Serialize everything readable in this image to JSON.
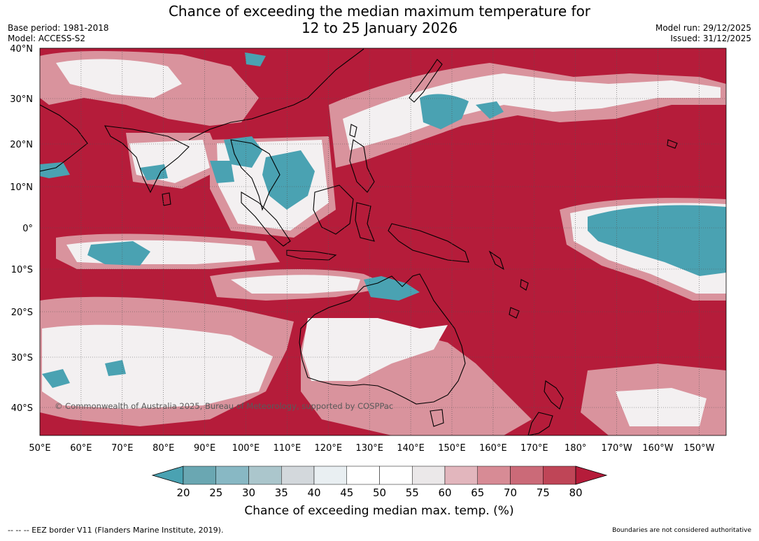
{
  "header": {
    "title_line1": "Chance of exceeding the median maximum temperature for",
    "title_line2": "12 to 25 January 2026",
    "base_period": "Base period: 1981-2018",
    "model": "Model: ACCESS-S2",
    "model_run": "Model run: 29/12/2025",
    "issued": "Issued: 31/12/2025"
  },
  "map": {
    "lon_labels": [
      "50°E",
      "60°E",
      "70°E",
      "80°E",
      "90°E",
      "100°E",
      "110°E",
      "120°E",
      "130°E",
      "140°E",
      "150°E",
      "160°E",
      "170°E",
      "180°",
      "170°W",
      "160°W",
      "150°W"
    ],
    "lat_labels": [
      "40°N",
      "30°N",
      "20°N",
      "10°N",
      "0°",
      "10°S",
      "20°S",
      "30°S",
      "40°S"
    ],
    "copyright": "© Commonwealth of Australia 2025, Bureau of Meteorology, supported by COSPPac",
    "colors": {
      "hot": "#b51c3a",
      "cool": "#4aa2b2",
      "ocean_base": "#b51c3a"
    }
  },
  "colorbar": {
    "ticks": [
      "20",
      "25",
      "30",
      "35",
      "40",
      "45",
      "50",
      "55",
      "60",
      "65",
      "70",
      "75",
      "80"
    ],
    "segment_colors": [
      "#6aa7b2",
      "#88b8c4",
      "#abc6cc",
      "#d3d8dc",
      "#e9eff2",
      "#ffffff",
      "#ffffff",
      "#ebe8e9",
      "#e2b6bd",
      "#d78b95",
      "#cb6a78",
      "#bf4557"
    ],
    "low_color": "#4aa2b2",
    "high_color": "#b51c3a",
    "title": "Chance of exceeding median max. temp. (%)"
  },
  "footer": {
    "left": "--  --  -- EEZ border V11 (Flanders Marine Institute, 2019).",
    "right": "Boundaries are not considered authoritative"
  }
}
